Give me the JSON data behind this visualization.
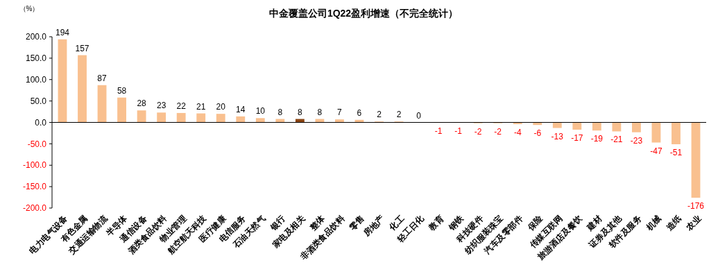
{
  "chart_data": {
    "type": "bar",
    "title": "中金覆盖公司1Q22盈利增速（不完全统计）",
    "ylabel": "（%）",
    "categories": [
      "电力电气设备",
      "有色金属",
      "交通运输物流",
      "半导体",
      "通信设备",
      "酒类食品饮料",
      "物业管理",
      "航空航天科技",
      "医疗健康",
      "电信服务",
      "石油天然气",
      "银行",
      "家电及相关",
      "整体",
      "非酒类食品饮料",
      "零售",
      "房地产",
      "化工",
      "轻工日化",
      "教育",
      "钢铁",
      "科技硬件",
      "纺织服装珠宝",
      "汽车及零部件",
      "保险",
      "传媒互联网",
      "旅游酒店及餐饮",
      "建材",
      "证券及其他",
      "软件及服务",
      "机械",
      "造纸",
      "农业"
    ],
    "values": [
      194,
      157,
      87,
      58,
      28,
      23,
      22,
      21,
      20,
      14,
      10,
      8,
      8,
      8,
      7,
      6,
      2,
      2,
      0,
      -1,
      -1,
      -2,
      -2,
      -4,
      -6,
      -13,
      -17,
      -19,
      -21,
      -23,
      -47,
      -51,
      -176
    ],
    "colors": [
      "#f9c08f",
      "#f9c08f",
      "#f9c08f",
      "#f9c08f",
      "#f9c08f",
      "#f9c08f",
      "#f9c08f",
      "#f9c08f",
      "#f9c08f",
      "#f9c08f",
      "#f9c08f",
      "#f9c08f",
      "#8b4513",
      "#f9c08f",
      "#f9c08f",
      "#f9c08f",
      "#f9c08f",
      "#f9c08f",
      "#f9c08f",
      "#f9c08f",
      "#f9c08f",
      "#f9c08f",
      "#f9c08f",
      "#f9c08f",
      "#f9c08f",
      "#f9c08f",
      "#f9c08f",
      "#f9c08f",
      "#f9c08f",
      "#f9c08f",
      "#f9c08f",
      "#f9c08f",
      "#f9c08f"
    ],
    "ylim": [
      -200,
      200
    ],
    "yticks": [
      {
        "value": -200,
        "label": "-200.0"
      },
      {
        "value": -150,
        "label": "-150.0"
      },
      {
        "value": -100,
        "label": "-100.0"
      },
      {
        "value": -50,
        "label": "-50.0"
      },
      {
        "value": 0,
        "label": "0.0"
      },
      {
        "value": 50,
        "label": "50.0"
      },
      {
        "value": 100,
        "label": "100.0"
      },
      {
        "value": 150,
        "label": "150.0"
      },
      {
        "value": 200,
        "label": "200.0"
      }
    ],
    "data_labels": true
  }
}
